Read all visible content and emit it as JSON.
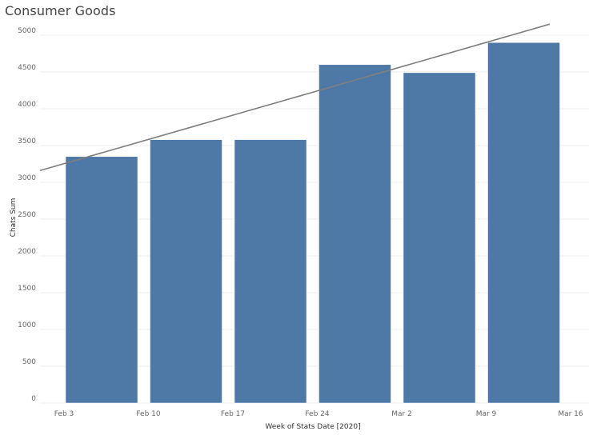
{
  "chart_data": {
    "type": "bar",
    "title": "Consumer Goods",
    "xlabel": "Week of Stats Date [2020]",
    "ylabel": "Chats Sum",
    "categories": [
      "Feb 3",
      "Feb 10",
      "Feb 17",
      "Feb 24",
      "Mar 2",
      "Mar 9"
    ],
    "x_ticks": [
      "Feb 3",
      "Feb 10",
      "Feb 17",
      "Feb 24",
      "Mar 2",
      "Mar 9",
      "Mar 16"
    ],
    "values": [
      3350,
      3580,
      3580,
      4600,
      4490,
      4900
    ],
    "ylim": [
      0,
      5000
    ],
    "y_ticks": [
      0,
      500,
      1000,
      1500,
      2000,
      2500,
      3000,
      3500,
      4000,
      4500,
      5000
    ],
    "trend_line": {
      "start_value": 3160,
      "end_value": 5150
    },
    "grid": true,
    "legend": "none",
    "colors": {
      "bar": "#4e79a7",
      "trend": "#7f7f7f",
      "grid": "#eeeeee"
    }
  }
}
